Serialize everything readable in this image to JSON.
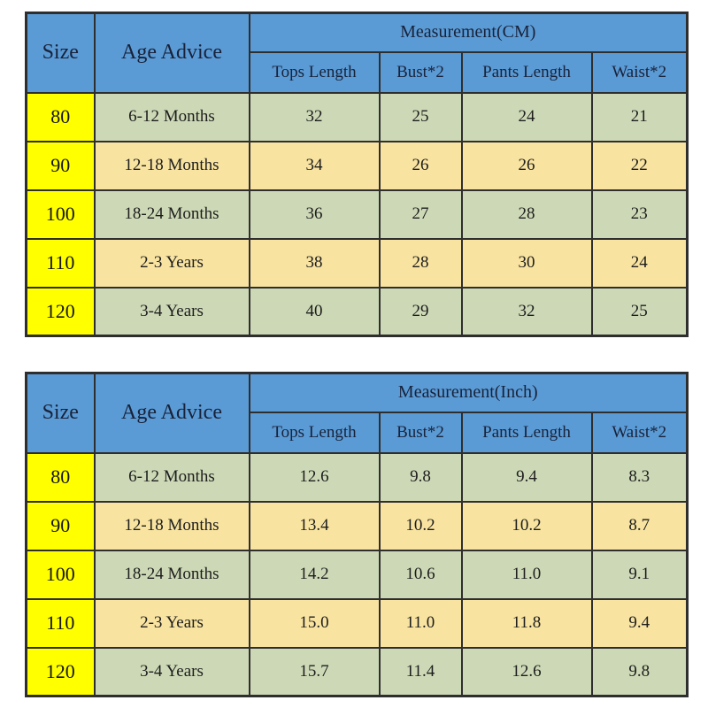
{
  "colors": {
    "header_bg": "#5b9bd5",
    "header_text": "#18223a",
    "size_column_bg": "#ffff00",
    "row_green_bg": "#cdd9b6",
    "row_tan_bg": "#f8e3a0",
    "border": "#2e2e2e",
    "cell_text": "#1d1d1d",
    "page_bg": "#ffffff"
  },
  "tables": [
    {
      "id": "cm",
      "headers": {
        "size": "Size",
        "age": "Age Advice",
        "measurement": "Measurement(CM)",
        "columns": [
          "Tops Length",
          "Bust*2",
          "Pants Length",
          "Waist*2"
        ]
      },
      "rows": [
        {
          "size": "80",
          "age": "6-12 Months",
          "values": [
            "32",
            "25",
            "24",
            "21"
          ]
        },
        {
          "size": "90",
          "age": "12-18 Months",
          "values": [
            "34",
            "26",
            "26",
            "22"
          ]
        },
        {
          "size": "100",
          "age": "18-24 Months",
          "values": [
            "36",
            "27",
            "28",
            "23"
          ]
        },
        {
          "size": "110",
          "age": "2-3 Years",
          "values": [
            "38",
            "28",
            "30",
            "24"
          ]
        },
        {
          "size": "120",
          "age": "3-4 Years",
          "values": [
            "40",
            "29",
            "32",
            "25"
          ]
        }
      ]
    },
    {
      "id": "inch",
      "headers": {
        "size": "Size",
        "age": "Age Advice",
        "measurement": "Measurement(Inch)",
        "columns": [
          "Tops Length",
          "Bust*2",
          "Pants Length",
          "Waist*2"
        ]
      },
      "rows": [
        {
          "size": "80",
          "age": "6-12 Months",
          "values": [
            "12.6",
            "9.8",
            "9.4",
            "8.3"
          ]
        },
        {
          "size": "90",
          "age": "12-18 Months",
          "values": [
            "13.4",
            "10.2",
            "10.2",
            "8.7"
          ]
        },
        {
          "size": "100",
          "age": "18-24 Months",
          "values": [
            "14.2",
            "10.6",
            "11.0",
            "9.1"
          ]
        },
        {
          "size": "110",
          "age": "2-3 Years",
          "values": [
            "15.0",
            "11.0",
            "11.8",
            "9.4"
          ]
        },
        {
          "size": "120",
          "age": "3-4 Years",
          "values": [
            "15.7",
            "11.4",
            "12.6",
            "9.8"
          ]
        }
      ]
    }
  ],
  "chart_data": [
    {
      "type": "table",
      "title": "Measurement(CM)",
      "columns": [
        "Size",
        "Age Advice",
        "Tops Length",
        "Bust*2",
        "Pants Length",
        "Waist*2"
      ],
      "rows": [
        [
          "80",
          "6-12 Months",
          32,
          25,
          24,
          21
        ],
        [
          "90",
          "12-18 Months",
          34,
          26,
          26,
          22
        ],
        [
          "100",
          "18-24 Months",
          36,
          27,
          28,
          23
        ],
        [
          "110",
          "2-3 Years",
          38,
          28,
          30,
          24
        ],
        [
          "120",
          "3-4 Years",
          40,
          29,
          32,
          25
        ]
      ]
    },
    {
      "type": "table",
      "title": "Measurement(Inch)",
      "columns": [
        "Size",
        "Age Advice",
        "Tops Length",
        "Bust*2",
        "Pants Length",
        "Waist*2"
      ],
      "rows": [
        [
          "80",
          "6-12 Months",
          12.6,
          9.8,
          9.4,
          8.3
        ],
        [
          "90",
          "12-18 Months",
          13.4,
          10.2,
          10.2,
          8.7
        ],
        [
          "100",
          "18-24 Months",
          14.2,
          10.6,
          11.0,
          9.1
        ],
        [
          "110",
          "2-3 Years",
          15.0,
          11.0,
          11.8,
          9.4
        ],
        [
          "120",
          "3-4 Years",
          15.7,
          11.4,
          12.6,
          9.8
        ]
      ]
    }
  ]
}
